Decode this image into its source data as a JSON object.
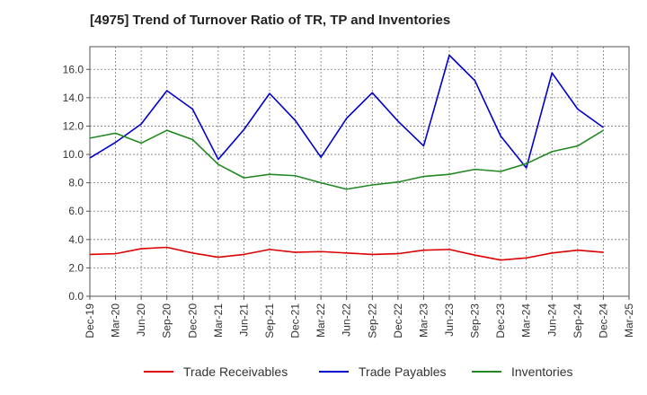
{
  "chart_data": {
    "type": "line",
    "title": "[4975]  Trend of Turnover Ratio of TR, TP and Inventories",
    "xlabel": "",
    "ylabel": "",
    "ylim": [
      0,
      17.6
    ],
    "yticks": [
      "0.0",
      "2.0",
      "4.0",
      "6.0",
      "8.0",
      "10.0",
      "12.0",
      "14.0",
      "16.0"
    ],
    "xticks": [
      "Dec-19",
      "Mar-20",
      "Jun-20",
      "Sep-20",
      "Dec-20",
      "Mar-21",
      "Jun-21",
      "Sep-21",
      "Dec-21",
      "Mar-22",
      "Jun-22",
      "Sep-22",
      "Dec-22",
      "Mar-23",
      "Jun-23",
      "Sep-23",
      "Dec-23",
      "Mar-24",
      "Jun-24",
      "Sep-24",
      "Dec-24",
      "Mar-25"
    ],
    "x": [
      "Dec-19",
      "Mar-20",
      "Jun-20",
      "Sep-20",
      "Dec-20",
      "Mar-21",
      "Jun-21",
      "Sep-21",
      "Dec-21",
      "Mar-22",
      "Jun-22",
      "Sep-22",
      "Dec-22",
      "Mar-23",
      "Jun-23",
      "Sep-23",
      "Dec-23",
      "Mar-24",
      "Jun-24",
      "Sep-24",
      "Dec-24"
    ],
    "grid": true,
    "legend_position": "bottom",
    "series": [
      {
        "name": "Trade Receivables",
        "color": "#dd0000",
        "values": [
          2.95,
          3.0,
          3.35,
          3.45,
          3.05,
          2.75,
          2.95,
          3.3,
          3.1,
          3.15,
          3.05,
          2.95,
          3.0,
          3.25,
          3.3,
          2.9,
          2.55,
          2.7,
          3.05,
          3.25,
          3.1
        ]
      },
      {
        "name": "Trade Payables",
        "color": "#0000cc",
        "values": [
          9.75,
          10.85,
          12.15,
          14.5,
          13.2,
          9.65,
          11.75,
          14.3,
          12.4,
          9.8,
          12.55,
          14.35,
          12.35,
          10.6,
          17.0,
          15.2,
          11.3,
          9.05,
          15.75,
          13.2,
          11.9
        ]
      },
      {
        "name": "Inventories",
        "color": "#228822",
        "values": [
          11.15,
          11.5,
          10.8,
          11.7,
          11.05,
          9.3,
          8.35,
          8.6,
          8.5,
          8.0,
          7.55,
          7.85,
          8.05,
          8.45,
          8.6,
          8.95,
          8.8,
          9.35,
          10.2,
          10.6,
          11.7
        ]
      }
    ]
  }
}
